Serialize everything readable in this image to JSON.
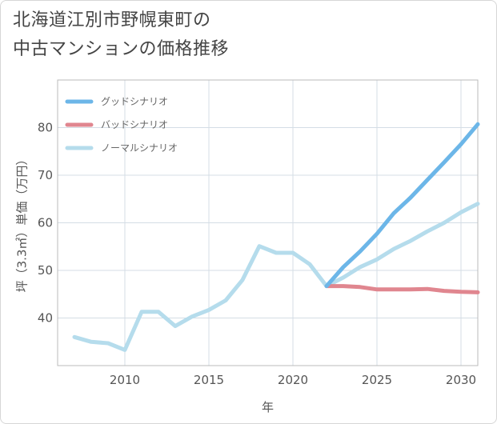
{
  "chart_data": {
    "type": "line",
    "title_line1": "北海道江別市野幌東町の",
    "title_line2": "中古マンションの価格推移",
    "xlabel": "年",
    "ylabel": "坪（3.3㎡）単価（万円）",
    "xlim": [
      2006,
      2031
    ],
    "ylim": [
      30,
      90
    ],
    "x_ticks": [
      2010,
      2015,
      2020,
      2025,
      2030
    ],
    "y_ticks": [
      40,
      50,
      60,
      70,
      80
    ],
    "grid": true,
    "legend_position": "top-left",
    "series": [
      {
        "name": "グッドシナリオ",
        "color": "#6cb6e8",
        "x": [
          2022,
          2023,
          2024,
          2025,
          2026,
          2027,
          2028,
          2029,
          2030,
          2031
        ],
        "values": [
          46.7,
          50.7,
          54.0,
          57.7,
          62.0,
          65.3,
          69.0,
          72.7,
          76.5,
          80.7
        ]
      },
      {
        "name": "バッドシナリオ",
        "color": "#e0868f",
        "x": [
          2022,
          2023,
          2024,
          2025,
          2026,
          2027,
          2028,
          2029,
          2030,
          2031
        ],
        "values": [
          46.7,
          46.7,
          46.5,
          46.0,
          46.0,
          46.0,
          46.1,
          45.7,
          45.5,
          45.4
        ]
      },
      {
        "name": "ノーマルシナリオ",
        "color": "#b5dcec",
        "x": [
          2007,
          2008,
          2009,
          2010,
          2011,
          2012,
          2013,
          2014,
          2015,
          2016,
          2017,
          2018,
          2019,
          2020,
          2021,
          2022,
          2023,
          2024,
          2025,
          2026,
          2027,
          2028,
          2029,
          2030,
          2031
        ],
        "values": [
          36.0,
          35.0,
          34.7,
          33.3,
          41.3,
          41.3,
          38.3,
          40.3,
          41.7,
          43.7,
          48.0,
          55.1,
          53.7,
          53.7,
          51.3,
          46.7,
          48.5,
          50.7,
          52.3,
          54.5,
          56.2,
          58.2,
          60.0,
          62.2,
          64.0
        ]
      }
    ]
  }
}
